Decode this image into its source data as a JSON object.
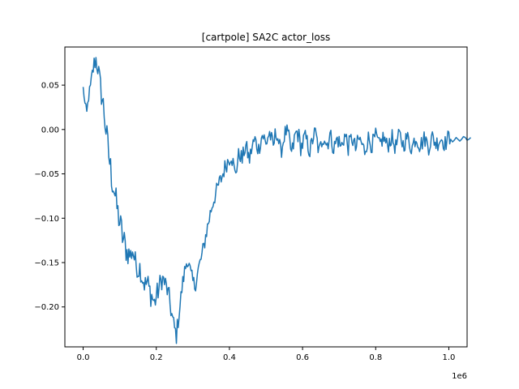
{
  "chart_data": {
    "type": "line",
    "title": "[cartpole] SA2C actor_loss",
    "xlabel": "",
    "ylabel": "",
    "x_offset_label": "1e6",
    "xlim": [
      -50000,
      1050000
    ],
    "ylim": [
      -0.245,
      0.093
    ],
    "x_ticks": [
      {
        "value": 0,
        "label": "0.0"
      },
      {
        "value": 200000,
        "label": "0.2"
      },
      {
        "value": 400000,
        "label": "0.4"
      },
      {
        "value": 600000,
        "label": "0.6"
      },
      {
        "value": 800000,
        "label": "0.8"
      },
      {
        "value": 1000000,
        "label": "1.0"
      }
    ],
    "y_ticks": [
      {
        "value": 0.05,
        "label": "0.05"
      },
      {
        "value": 0.0,
        "label": "0.00"
      },
      {
        "value": -0.05,
        "label": "−0.05"
      },
      {
        "value": -0.1,
        "label": "−0.10"
      },
      {
        "value": -0.15,
        "label": "−0.15"
      },
      {
        "value": -0.2,
        "label": "−0.20"
      }
    ],
    "grid": false,
    "legend": "none",
    "series": [
      {
        "color": "#1f77b4",
        "x_start": 0,
        "x_step": 5000,
        "values": [
          0.047,
          0.028,
          0.018,
          0.038,
          0.046,
          0.062,
          0.074,
          0.079,
          0.071,
          0.055,
          0.04,
          0.028,
          0.008,
          -0.01,
          -0.028,
          -0.045,
          -0.058,
          -0.068,
          -0.082,
          -0.094,
          -0.105,
          -0.115,
          -0.125,
          -0.132,
          -0.138,
          -0.14,
          -0.142,
          -0.135,
          -0.145,
          -0.152,
          -0.16,
          -0.155,
          -0.165,
          -0.17,
          -0.176,
          -0.172,
          -0.18,
          -0.185,
          -0.19,
          -0.196,
          -0.188,
          -0.182,
          -0.175,
          -0.168,
          -0.17,
          -0.175,
          -0.181,
          -0.19,
          -0.203,
          -0.215,
          -0.225,
          -0.232,
          -0.215,
          -0.198,
          -0.18,
          -0.166,
          -0.155,
          -0.145,
          -0.155,
          -0.165,
          -0.172,
          -0.176,
          -0.168,
          -0.158,
          -0.15,
          -0.142,
          -0.132,
          -0.12,
          -0.11,
          -0.1,
          -0.09,
          -0.082,
          -0.075,
          -0.07,
          -0.063,
          -0.058,
          -0.053,
          -0.046,
          -0.04,
          -0.036,
          -0.032,
          -0.028,
          -0.038,
          -0.05,
          -0.042,
          -0.03,
          -0.028,
          -0.035,
          -0.024,
          -0.019,
          -0.027,
          -0.034,
          -0.023,
          -0.016,
          -0.012,
          -0.018,
          -0.022,
          -0.013,
          -0.006,
          -0.01,
          -0.018,
          -0.008,
          -0.004,
          -0.012,
          -0.02,
          -0.007,
          -0.003,
          -0.014,
          -0.026,
          -0.018,
          -0.007,
          -0.002,
          -0.006,
          -0.015,
          -0.028,
          -0.018,
          -0.006,
          -0.003,
          -0.008,
          -0.02,
          -0.017,
          -0.009,
          -0.011,
          -0.018,
          -0.025,
          -0.016,
          -0.007,
          -0.004,
          -0.014,
          -0.026,
          -0.019,
          -0.009,
          -0.008,
          -0.017,
          -0.013,
          -0.006,
          -0.012,
          -0.022,
          -0.016,
          -0.01,
          -0.014,
          -0.021,
          -0.013,
          -0.007,
          -0.011,
          -0.02,
          -0.014,
          -0.009,
          -0.015,
          -0.022,
          -0.016,
          -0.011,
          -0.014,
          -0.02,
          -0.024,
          -0.016,
          -0.01,
          -0.014,
          -0.018,
          -0.012,
          -0.008,
          -0.013,
          -0.019,
          -0.014,
          -0.009,
          -0.012,
          -0.018,
          -0.016,
          -0.011,
          -0.01,
          -0.016,
          -0.02,
          -0.012,
          -0.007,
          -0.011,
          -0.017,
          -0.014,
          -0.009,
          -0.012,
          -0.018,
          -0.02,
          -0.013,
          -0.009,
          -0.012,
          -0.017,
          -0.016,
          -0.012,
          -0.01,
          -0.015,
          -0.019,
          -0.013,
          -0.009,
          -0.012,
          -0.016,
          -0.014,
          -0.011,
          -0.01,
          -0.013,
          -0.016,
          -0.012,
          -0.009,
          -0.011,
          -0.014,
          -0.012,
          -0.009,
          -0.011,
          -0.013,
          -0.011,
          -0.008,
          -0.009,
          -0.012,
          -0.011,
          -0.009
        ],
        "noise": [
          0.003,
          0.006,
          0.007,
          0.008,
          0.01,
          0.01,
          0.011,
          0.013,
          0.014,
          0.014,
          0.015,
          0.015,
          0.016,
          0.017,
          0.018,
          0.019,
          0.018,
          0.017,
          0.017,
          0.016,
          0.017,
          0.019,
          0.018,
          0.016,
          0.015,
          0.014,
          0.014,
          0.013,
          0.012,
          0.011,
          0.011,
          0.012,
          0.013,
          0.014,
          0.015,
          0.015,
          0.015,
          0.015,
          0.014,
          0.014,
          0.013,
          0.013,
          0.013,
          0.013,
          0.012,
          0.012,
          0.012,
          0.012,
          0.011,
          0.011,
          0.011,
          0.011,
          0.01,
          0.01,
          0.01,
          0.01,
          0.01,
          0.01,
          0.01,
          0.01,
          0.01,
          0.01,
          0.01,
          0.01,
          0.01,
          0.01,
          0.01,
          0.01,
          0.01,
          0.01,
          0.01,
          0.01,
          0.01,
          0.01,
          0.01,
          0.01,
          0.01,
          0.01,
          0.01,
          0.01,
          0.01,
          0.01,
          0.01,
          0.01,
          0.01,
          0.01,
          0.01,
          0.01,
          0.01,
          0.01,
          0.01,
          0.01,
          0.01,
          0.01,
          0.01,
          0.01,
          0.01,
          0.01,
          0.01,
          0.01,
          0.01,
          0.01,
          0.01,
          0.01,
          0.01,
          0.01,
          0.01,
          0.01,
          0.01,
          0.01,
          0.01,
          0.01,
          0.01,
          0.01,
          0.01,
          0.01,
          0.01,
          0.01,
          0.01,
          0.01,
          0.01,
          0.01,
          0.01,
          0.01,
          0.01,
          0.01,
          0.01,
          0.01,
          0.01,
          0.01,
          0.01,
          0.01,
          0.01,
          0.01,
          0.01,
          0.01,
          0.01,
          0.01,
          0.01,
          0.01,
          0.01,
          0.01,
          0.01,
          0.01,
          0.01,
          0.01,
          0.01,
          0.01,
          0.01,
          0.01,
          0.01,
          0.01,
          0.01,
          0.01,
          0.01,
          0.01,
          0.01,
          0.01,
          0.01,
          0.01,
          0.01,
          0.01,
          0.01,
          0.01,
          0.01,
          0.01,
          0.01,
          0.01,
          0.01,
          0.01,
          0.01,
          0.01,
          0.01,
          0.01,
          0.01,
          0.01,
          0.01,
          0.01,
          0.01,
          0.01,
          0.01,
          0.01,
          0.01,
          0.01,
          0.01,
          0.01,
          0.01,
          0.01,
          0.01,
          0.01,
          0.01,
          0.01,
          0.01,
          0.01,
          0.01,
          0.01,
          0.01,
          0.01,
          0.01,
          0.01,
          0.01
        ]
      }
    ]
  }
}
